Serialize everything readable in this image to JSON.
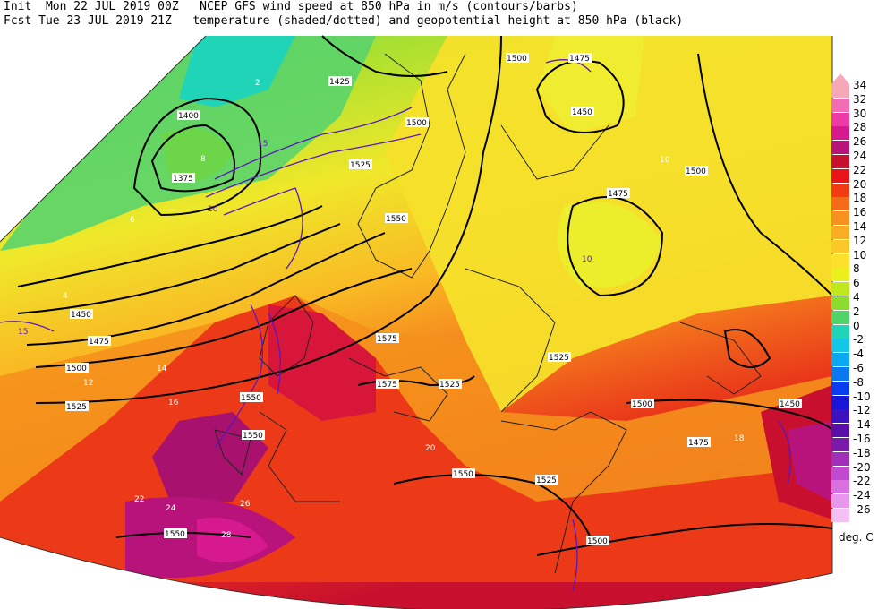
{
  "header": {
    "line1": "Init  Mon 22 JUL 2019 00Z   NCEP GFS wind speed at 850 hPa in m/s (contours/barbs)",
    "line2": "Fcst Tue 23 JUL 2019 21Z   temperature (shaded/dotted) and geopotential height at 850 hPa (black)"
  },
  "legend": {
    "units": "deg. C",
    "items": [
      {
        "value": "34",
        "color": "#f7a8b8"
      },
      {
        "value": "32",
        "color": "#f26bb5"
      },
      {
        "value": "30",
        "color": "#ec3aa7"
      },
      {
        "value": "28",
        "color": "#d6198f"
      },
      {
        "value": "26",
        "color": "#b8137a"
      },
      {
        "value": "24",
        "color": "#c8102e"
      },
      {
        "value": "22",
        "color": "#e8141a"
      },
      {
        "value": "20",
        "color": "#f23a14"
      },
      {
        "value": "18",
        "color": "#f56a18"
      },
      {
        "value": "16",
        "color": "#f7901c"
      },
      {
        "value": "14",
        "color": "#f9ad22"
      },
      {
        "value": "12",
        "color": "#fbc82a"
      },
      {
        "value": "10",
        "color": "#fde02c"
      },
      {
        "value": "8",
        "color": "#eaf01c"
      },
      {
        "value": "6",
        "color": "#bfe81e"
      },
      {
        "value": "4",
        "color": "#8cdc30"
      },
      {
        "value": "2",
        "color": "#50d46a"
      },
      {
        "value": "0",
        "color": "#20d4b8"
      },
      {
        "value": "-2",
        "color": "#12c8e6"
      },
      {
        "value": "-4",
        "color": "#0aa8f0"
      },
      {
        "value": "-6",
        "color": "#0a78f0"
      },
      {
        "value": "-8",
        "color": "#0a3cf0"
      },
      {
        "value": "-10",
        "color": "#1a16d8"
      },
      {
        "value": "-12",
        "color": "#3a12c0"
      },
      {
        "value": "-14",
        "color": "#5a0ea8"
      },
      {
        "value": "-16",
        "color": "#7a1aa8"
      },
      {
        "value": "-18",
        "color": "#a030b8"
      },
      {
        "value": "-20",
        "color": "#c04ad0"
      },
      {
        "value": "-22",
        "color": "#d870e0"
      },
      {
        "value": "-24",
        "color": "#e898ec"
      },
      {
        "value": "-26",
        "color": "#f4c0f4"
      }
    ]
  },
  "height_labels": [
    "1375",
    "1400",
    "1425",
    "1450",
    "1475",
    "1500",
    "1525",
    "1550",
    "1575",
    "1500",
    "1475",
    "1450",
    "1500",
    "1525",
    "1550",
    "1575",
    "1525",
    "1525",
    "1550",
    "1500",
    "1475",
    "1450",
    "1500",
    "1525",
    "1550",
    "1475",
    "1500",
    "1550"
  ],
  "temp_labels": [
    "2",
    "4",
    "6",
    "8",
    "10",
    "12",
    "14",
    "16",
    "18",
    "20",
    "22",
    "24",
    "26",
    "28"
  ],
  "wind_labels": [
    "15",
    "20",
    "15",
    "10"
  ]
}
